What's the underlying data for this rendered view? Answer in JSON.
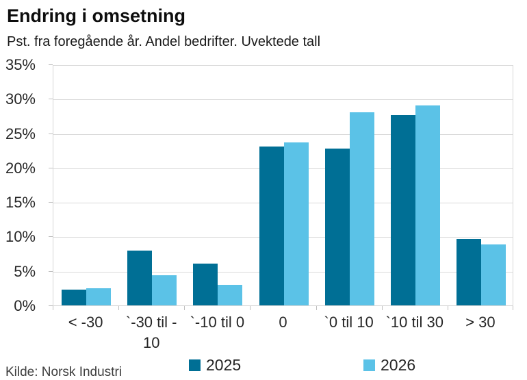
{
  "header": {
    "title": "Endring i omsetning",
    "subtitle": "Pst. fra foregående år. Andel bedrifter. Uvektede tall"
  },
  "chart_data": {
    "type": "bar",
    "title": "Endring i omsetning",
    "subtitle": "Pst. fra foregående år. Andel bedrifter. Uvektede tall",
    "categories": [
      "< -30",
      "`-30 til -\n10",
      "`-10 til 0",
      "0",
      "`0 til 10",
      "`10 til 30",
      "> 30"
    ],
    "series": [
      {
        "name": "2025",
        "color": "#006F95",
        "values": [
          2.3,
          8.0,
          6.1,
          23.1,
          22.8,
          27.6,
          9.6
        ]
      },
      {
        "name": "2026",
        "color": "#5BC2E7",
        "values": [
          2.5,
          4.4,
          3.0,
          23.7,
          28.0,
          29.0,
          8.9
        ]
      }
    ],
    "xlabel": "",
    "ylabel": "",
    "ylim": [
      0,
      35
    ],
    "ytick_step": 5,
    "ytick_suffix": "%",
    "grid": true,
    "legend_position": "bottom"
  },
  "footer": {
    "source": "Kilde: Norsk Industri"
  },
  "colors": {
    "series_2025": "#006F95",
    "series_2026": "#5BC2E7",
    "gridline": "#d9d9d9",
    "text": "#262626"
  }
}
